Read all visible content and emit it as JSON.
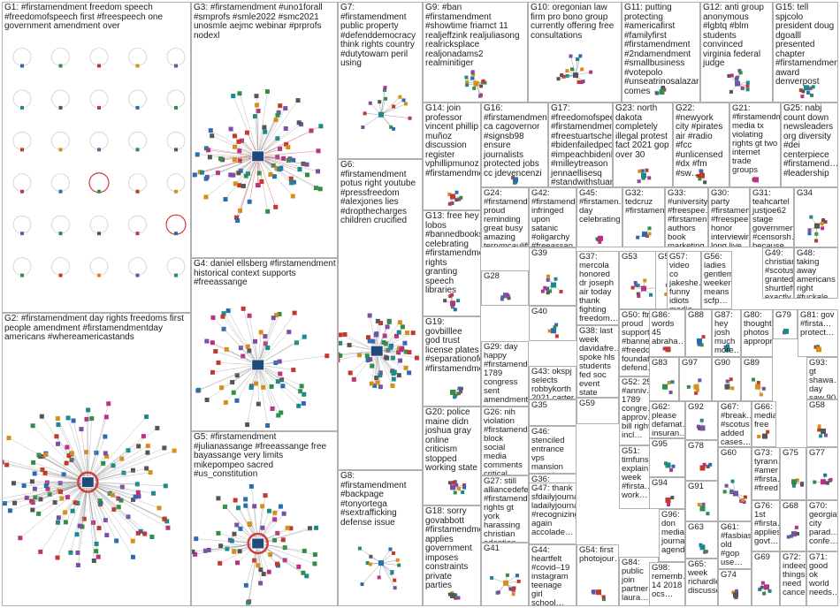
{
  "groups": {
    "G1": "G1: #firstamendment freedom speech #freedomofspeech first #freespeech one government amendment over",
    "G2": "G2: #firstamendment day rights freedoms first people amendment #firstamendmentday americans #whereamericastands",
    "G3": "G3: #firstamendment #uno1forall #smprofs #smle2022 #smc2021 unosmle aejmc webinar #prprofs nodexl",
    "G4": "G4: daniel ellsberg #firstamendment historical context supports #freeassange",
    "G5": "G5: #firstamendment #julianassange #freeassange free bayassange very limits mikepompeo sacred #us_constitution",
    "G6": "G6: #firstamendment potus right youtube #pressfreedom #alexjones lies #dropthecharges children crucified",
    "G7": "G7: #firstamendment public property #defenddemocracy think rights country #dutytowarn peril using",
    "G8": "G8: #firstamendment #backpage #tonyortega #sextrafficking defense issue",
    "G9": "G9: #ban #firstamendment #showtime friamct 11 realjeffzink realjuliasong realricksplace realjonadams2 realminitiger",
    "G10": "G10: oregonian law firm pro bono group currently offering free consultations",
    "G11": "G11: putting protecting #americafirst #familyfirst #firstamendment #2ndamendment #smallbusiness #votepolo #unseatrinosalazar comes",
    "G12": "G12: anti group anonymous #lgbtq #blm students convinced virginia federal judge",
    "G13": "G13: free hey lobos #bannedbooks… celebrating #firstamendme… rights granting speech libraries",
    "G14": "G14: join professor vincent phillip muñoz discussion register vphillipmunoz #firstamendme…",
    "G15": "G15: tell spjcolo president doug dgoalll presented chapter #firstamendment award denverpost",
    "G16": "G16: #firstamendment ca cagovernor #signsb98 ensure journalists protected jobs cc jdevencenzi",
    "G17": "G17: #freedomofspeech #firstamendment #freestuartscheller #bidenfailedpeople #impeachbidenh… #milleytreason jennaellisesq #standwithstuarts…",
    "G18": "G18: sorry govabbott #firstamendme… applies government imposes constraints private parties",
    "G19": "G19: govbilllee god trust license plates #separationofc… #firstamendme…",
    "G20": "G20: police maine didn joshua gray online criticism stopped working state",
    "G21": "G21: #firstamendment media tx violating rights gt two internet trade groups",
    "G22": "G22: #newyork city #pirates air #radio #fcc #unlicensed #dx #fm #sw…",
    "G23": "G23: north dakota completely illegal protest fact 2021 gop over 30",
    "G24": "G24: #firstamendme… proud reminding great busy amazing terrymcauliffe hallaayala markherring…",
    "G25": "G25: nabj count down newsleaders org diversity #dei centerpiece #firstamend… #leadership",
    "G26": "G26: nih violation #firstamendme… block social media comments critical…",
    "G27": "G27: still alliancedefe… #firstamendme… rights gt york harassing christian adoption…",
    "G28": "G28",
    "G29": "G29: day happy #firstamendme… 1789 congress sent amendments become…",
    "G30": "G30: party #firstamen… #freespee… honor interviewing long live alternative…",
    "G31": "G31: teahcartel justjoe62 stage government #censorsh… because…",
    "G32": "G32: tedcruz #firstamen…",
    "G33": "G33: #university #freespee… #firstamen… authors book marketing…",
    "G34": "G34",
    "G35": "G35",
    "G36": "G36: courty #firstame… muslims 3rd circuit heard oral arguments hilsenrath school",
    "G37": "G37: mercola honored dr joseph air today thank fighting freedom…",
    "G38": "G38: last week davidafre… spoke hls students fed soc event state",
    "G39": "G39",
    "G40": "G40",
    "G41": "G41",
    "G42": "G42: #firstamend… infringed upon satanic #oligarchy #freeassan…",
    "G43": "G43: okspj selects robbykorth 2021 carter bradley #firstamend…",
    "G44": "G44: heartfelt #covid–19 instagram teenage girl school…",
    "G45": "G45: #firstamen… day celebrating",
    "G46": "G46: stenciled entrance vps mansion next door british embassy…",
    "G47": "G47: thank sfdailyjournal ladailyjournal #recognizing again accolade…",
    "G48": "G48: taking away americans right #fuckale…",
    "G49": "G49: christian #scotus granted shurtleff exactly…",
    "G50": "G50: ftrf proud support… #banne… #freedo… foundat… defend…",
    "G51": "G51: timfuns… explain week #firsta… work…",
    "G52": "G52: 25 #anniv… 1789 congre… approv… bill rights incl…",
    "G53": "G53",
    "G54": "G54: first photojour…",
    "G55": "G55",
    "G56": "G56: ladies gentlem… weekend means scfp…",
    "G57": "G57: video co jakeshe… funny idiots media…",
    "G58": "G58",
    "G59": "G59",
    "G60": "G60",
    "G61": "G61: #fasbiasi… old #gop use…",
    "G62": "G62: please defamat… insuran…",
    "G63": "G63",
    "G64": "G64",
    "G65": "G65: week richardle… discusse…",
    "G66": "G66: media free",
    "G67": "G67: #break… #scotus added cases…",
    "G68": "G68",
    "G69": "G69",
    "G70": "G70: georgia city parad… confe…",
    "G71": "G71: good ok world needs…",
    "G72": "G72: indeed things need cancel…",
    "G73": "G73: tyrann… #amer… #firsta… #freed…",
    "G74": "G74",
    "G75": "G75",
    "G76": "G76: 1st #firsta… applies govt…",
    "G77": "G77",
    "G78": "G78",
    "G79": "G79",
    "G80": "G80: thought photos appropr…",
    "G81": "G81: gov #firsta… protect…",
    "G82": "G82",
    "G83": "G83",
    "G84": "G84: public join partner laura…",
    "G85": "G85: violates establis… clause…",
    "G86": "G86: words 45 abraha…",
    "G87": "G87: hey josh much more…",
    "G88": "G88",
    "G89": "G89",
    "G90": "G90",
    "G91": "G91",
    "G92": "G92",
    "G93": "G93: gt shawa… day saw 90 #wildh…",
    "G94": "G94",
    "G95": "G95",
    "G96": "G96: don media journalist agenda…",
    "G97": "G97",
    "G98": "G98: rememb… 14 2018 ocs…"
  },
  "colors": {
    "edge": "#9a9a9a",
    "edge_red": "#d23c3c",
    "border": "#b0b0b0",
    "node_palette": [
      "#2b6cb0",
      "#2f8f46",
      "#c0392b",
      "#d98e1a",
      "#7b4fa3",
      "#1b8a8a",
      "#555555",
      "#b83280"
    ]
  }
}
